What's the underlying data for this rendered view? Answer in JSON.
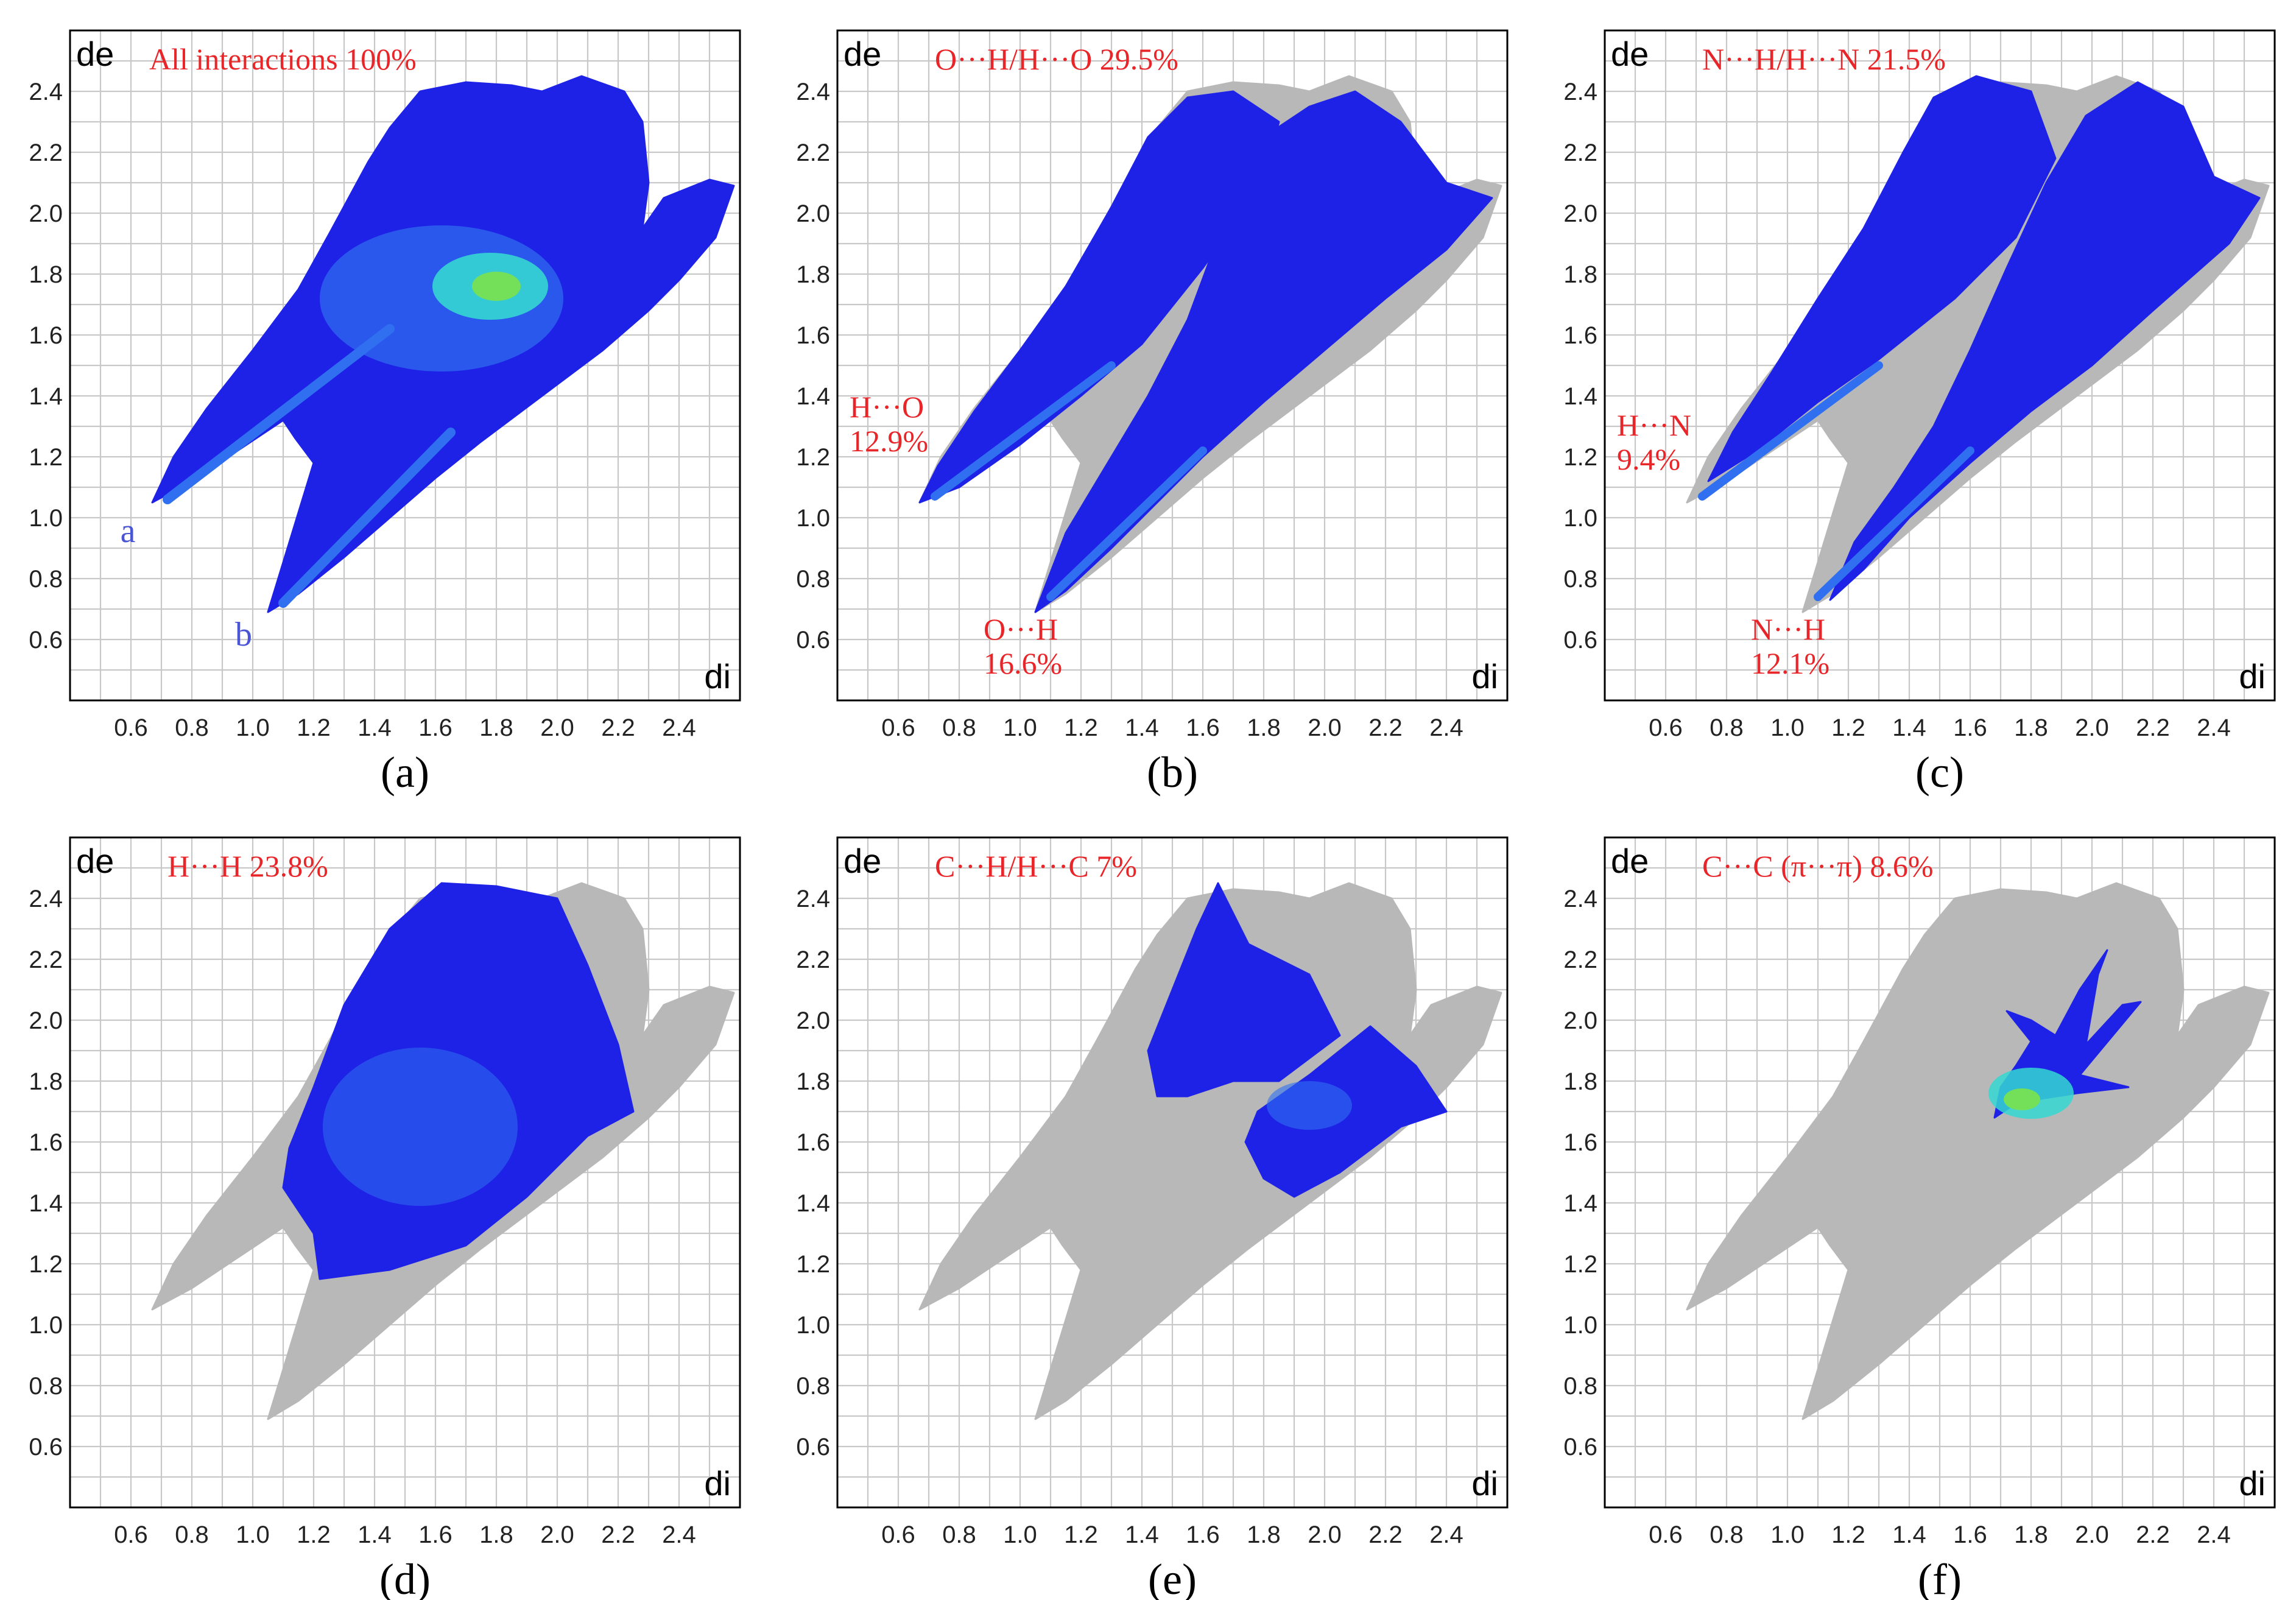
{
  "colors": {
    "grid": "#c8c8c8",
    "gray_region": "#b8b8b8",
    "blue": "#1e22e6",
    "mid_blue": "#2f6ff0",
    "cyan": "#35d7d2",
    "green": "#74e05a",
    "annotation": "#e8262a",
    "peak_label": "#4a55d6"
  },
  "chart_data": [
    {
      "type": "fingerprint-plot",
      "panel": "(a)",
      "title": "All interactions 100%",
      "xlabel": "di",
      "ylabel": "de",
      "xlim": [
        0.4,
        2.6
      ],
      "ylim": [
        0.4,
        2.6
      ],
      "xticks": [
        "0.6",
        "0.8",
        "1.0",
        "1.2",
        "1.4",
        "1.6",
        "1.8",
        "2.0",
        "2.2",
        "2.4"
      ],
      "yticks": [
        "0.6",
        "0.8",
        "1.0",
        "1.2",
        "1.4",
        "1.6",
        "1.8",
        "2.0",
        "2.2",
        "2.4"
      ],
      "highlight": "all",
      "peaks": [
        {
          "label": "a",
          "di": 0.59,
          "de": 0.96
        },
        {
          "label": "b",
          "di": 0.97,
          "de": 0.62
        }
      ],
      "annotations": []
    },
    {
      "type": "fingerprint-plot",
      "panel": "(b)",
      "title": "O···H/H···O 29.5%",
      "xlabel": "di",
      "ylabel": "de",
      "xlim": [
        0.4,
        2.6
      ],
      "ylim": [
        0.4,
        2.6
      ],
      "xticks": [
        "0.6",
        "0.8",
        "1.0",
        "1.2",
        "1.4",
        "1.6",
        "1.8",
        "2.0",
        "2.2",
        "2.4"
      ],
      "yticks": [
        "0.6",
        "0.8",
        "1.0",
        "1.2",
        "1.4",
        "1.6",
        "1.8",
        "2.0",
        "2.2",
        "2.4"
      ],
      "highlight": "both-spikes",
      "peaks": [],
      "annotations": [
        {
          "lines": [
            "H···O",
            "12.9%"
          ],
          "di": 0.44,
          "de": 1.33
        },
        {
          "lines": [
            "O···H",
            "16.6%"
          ],
          "di": 0.88,
          "de": 0.6
        }
      ]
    },
    {
      "type": "fingerprint-plot",
      "panel": "(c)",
      "title": "N···H/H···N 21.5%",
      "xlabel": "di",
      "ylabel": "de",
      "xlim": [
        0.4,
        2.6
      ],
      "ylim": [
        0.4,
        2.6
      ],
      "xticks": [
        "0.6",
        "0.8",
        "1.0",
        "1.2",
        "1.4",
        "1.6",
        "1.8",
        "2.0",
        "2.2",
        "2.4"
      ],
      "yticks": [
        "0.6",
        "0.8",
        "1.0",
        "1.2",
        "1.4",
        "1.6",
        "1.8",
        "2.0",
        "2.2",
        "2.4"
      ],
      "highlight": "both-spikes",
      "peaks": [],
      "annotations": [
        {
          "lines": [
            "H···N",
            "9.4%"
          ],
          "di": 0.44,
          "de": 1.27
        },
        {
          "lines": [
            "N···H",
            "12.1%"
          ],
          "di": 0.88,
          "de": 0.6
        }
      ]
    },
    {
      "type": "fingerprint-plot",
      "panel": "(d)",
      "title": "H···H 23.8%",
      "xlabel": "di",
      "ylabel": "de",
      "xlim": [
        0.4,
        2.6
      ],
      "ylim": [
        0.4,
        2.6
      ],
      "xticks": [
        "0.6",
        "0.8",
        "1.0",
        "1.2",
        "1.4",
        "1.6",
        "1.8",
        "2.0",
        "2.2",
        "2.4"
      ],
      "yticks": [
        "0.6",
        "0.8",
        "1.0",
        "1.2",
        "1.4",
        "1.6",
        "1.8",
        "2.0",
        "2.2",
        "2.4"
      ],
      "highlight": "center-large",
      "peaks": [],
      "annotations": []
    },
    {
      "type": "fingerprint-plot",
      "panel": "(e)",
      "title": "C···H/H···C 7%",
      "xlabel": "di",
      "ylabel": "de",
      "xlim": [
        0.4,
        2.6
      ],
      "ylim": [
        0.4,
        2.6
      ],
      "xticks": [
        "0.6",
        "0.8",
        "1.0",
        "1.2",
        "1.4",
        "1.6",
        "1.8",
        "2.0",
        "2.2",
        "2.4"
      ],
      "yticks": [
        "0.6",
        "0.8",
        "1.0",
        "1.2",
        "1.4",
        "1.6",
        "1.8",
        "2.0",
        "2.2",
        "2.4"
      ],
      "highlight": "wings",
      "peaks": [],
      "annotations": []
    },
    {
      "type": "fingerprint-plot",
      "panel": "(f)",
      "title": "C···C (π···π) 8.6%",
      "xlabel": "di",
      "ylabel": "de",
      "xlim": [
        0.4,
        2.6
      ],
      "ylim": [
        0.4,
        2.6
      ],
      "xticks": [
        "0.6",
        "0.8",
        "1.0",
        "1.2",
        "1.4",
        "1.6",
        "1.8",
        "2.0",
        "2.2",
        "2.4"
      ],
      "yticks": [
        "0.6",
        "0.8",
        "1.0",
        "1.2",
        "1.4",
        "1.6",
        "1.8",
        "2.0",
        "2.2",
        "2.4"
      ],
      "highlight": "arrow",
      "peaks": [],
      "annotations": []
    }
  ]
}
